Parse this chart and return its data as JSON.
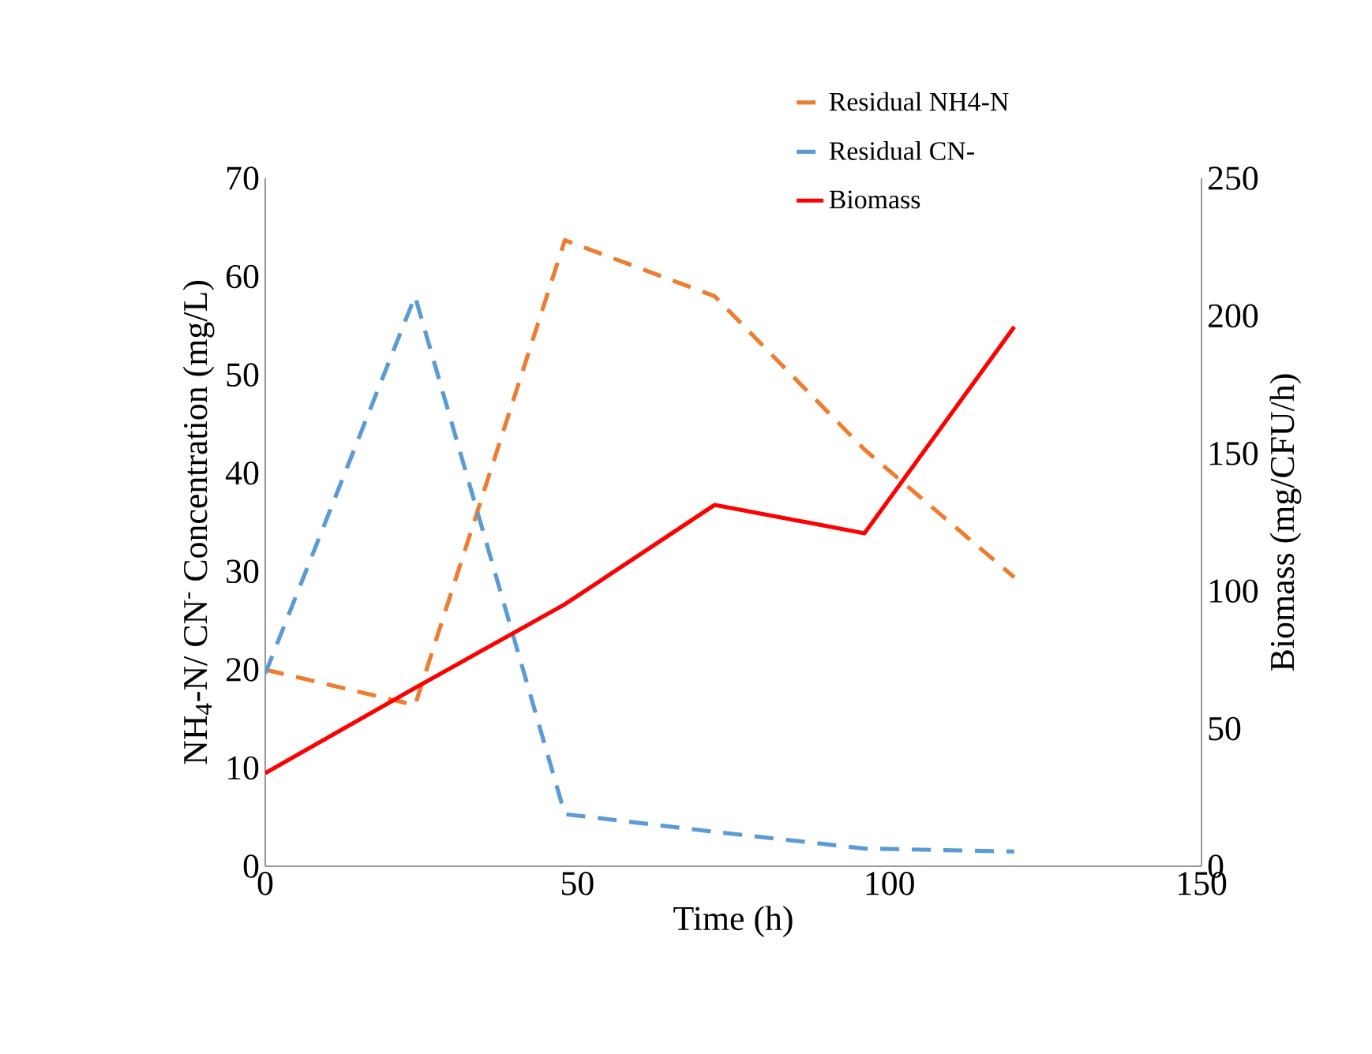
{
  "chart_data": {
    "type": "line",
    "xlabel": "Time (h)",
    "ylabel": "NH$_{4}$-N/ CN$^{-}$ Concentration (mg/L)",
    "y2label": "Biomass (mg/CFU/h)",
    "x": [
      0,
      24,
      48,
      72,
      96,
      120
    ],
    "xlim": [
      0,
      150
    ],
    "xticks": [
      0,
      50,
      100,
      150
    ],
    "ylim": [
      0,
      70
    ],
    "yticks": [
      0,
      10,
      20,
      30,
      40,
      50,
      60,
      70
    ],
    "y2lim": [
      0,
      250
    ],
    "y2ticks": [
      0,
      50,
      100,
      150,
      200,
      250
    ],
    "legend": "top right",
    "marker": "none",
    "series": [
      {
        "name": "Residual NH4-N",
        "color": "#ed7d31",
        "line_style": "dashed",
        "values": [
          20,
          16.4,
          63.7,
          58,
          42.4,
          29.4
        ]
      },
      {
        "name": "Residual CN-",
        "color": "#5b9bd5",
        "line_style": "dashed",
        "values": [
          19.6,
          58,
          5.3,
          3.5,
          1.8,
          1.5
        ]
      },
      {
        "name": "Biomass",
        "color": "#ff0000",
        "line_style": "solid",
        "axis": "y2",
        "values": [
          33.8,
          64.8,
          95.2,
          131.3,
          121,
          196
        ]
      }
    ]
  }
}
